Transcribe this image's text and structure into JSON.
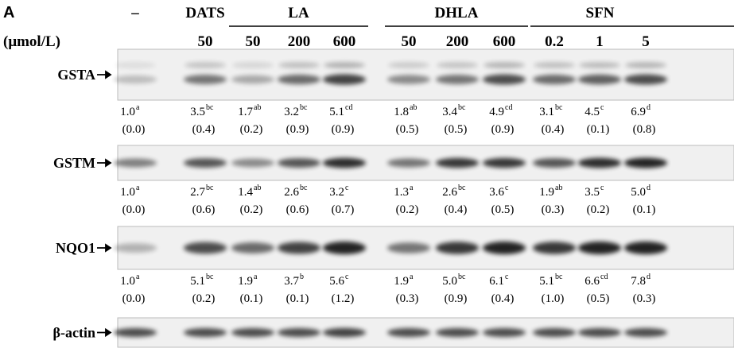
{
  "panel": "A",
  "unit": "(μmol/L)",
  "groups": [
    {
      "name": "–",
      "doses": []
    },
    {
      "name": "DATS",
      "doses": [
        "50"
      ]
    },
    {
      "name": "LA",
      "doses": [
        "50",
        "200",
        "600"
      ]
    },
    {
      "name": "DHLA",
      "doses": [
        "50",
        "200",
        "600"
      ]
    },
    {
      "name": "SFN",
      "doses": [
        "0.2",
        "1",
        "5"
      ]
    }
  ],
  "blots": [
    {
      "label": "GSTA",
      "values": [
        {
          "v": "1.0",
          "sup": "a",
          "sd": "(0.0)"
        },
        {
          "v": "3.5",
          "sup": "bc",
          "sd": "(0.4)"
        },
        {
          "v": "1.7",
          "sup": "ab",
          "sd": "(0.2)"
        },
        {
          "v": "3.2",
          "sup": "bc",
          "sd": "(0.9)"
        },
        {
          "v": "5.1",
          "sup": "cd",
          "sd": "(0.9)"
        },
        {
          "v": "1.8",
          "sup": "ab",
          "sd": "(0.5)"
        },
        {
          "v": "3.4",
          "sup": "bc",
          "sd": "(0.5)"
        },
        {
          "v": "4.9",
          "sup": "cd",
          "sd": "(0.9)"
        },
        {
          "v": "3.1",
          "sup": "bc",
          "sd": "(0.4)"
        },
        {
          "v": "4.5",
          "sup": "c",
          "sd": "(0.1)"
        },
        {
          "v": "6.9",
          "sup": "d",
          "sd": "(0.8)"
        }
      ]
    },
    {
      "label": "GSTM",
      "values": [
        {
          "v": "1.0",
          "sup": "a",
          "sd": "(0.0)"
        },
        {
          "v": "2.7",
          "sup": "bc",
          "sd": "(0.6)"
        },
        {
          "v": "1.4",
          "sup": "ab",
          "sd": "(0.2)"
        },
        {
          "v": "2.6",
          "sup": "bc",
          "sd": "(0.6)"
        },
        {
          "v": "3.2",
          "sup": "c",
          "sd": "(0.7)"
        },
        {
          "v": "1.3",
          "sup": "a",
          "sd": "(0.2)"
        },
        {
          "v": "2.6",
          "sup": "bc",
          "sd": "(0.4)"
        },
        {
          "v": "3.6",
          "sup": "c",
          "sd": "(0.5)"
        },
        {
          "v": "1.9",
          "sup": "ab",
          "sd": "(0.3)"
        },
        {
          "v": "3.5",
          "sup": "c",
          "sd": "(0.2)"
        },
        {
          "v": "5.0",
          "sup": "d",
          "sd": "(0.1)"
        }
      ]
    },
    {
      "label": "NQO1",
      "values": [
        {
          "v": "1.0",
          "sup": "a",
          "sd": "(0.0)"
        },
        {
          "v": "5.1",
          "sup": "bc",
          "sd": "(0.2)"
        },
        {
          "v": "1.9",
          "sup": "a",
          "sd": "(0.1)"
        },
        {
          "v": "3.7",
          "sup": "b",
          "sd": "(0.1)"
        },
        {
          "v": "5.6",
          "sup": "c",
          "sd": "(1.2)"
        },
        {
          "v": "1.9",
          "sup": "a",
          "sd": "(0.3)"
        },
        {
          "v": "5.0",
          "sup": "bc",
          "sd": "(0.9)"
        },
        {
          "v": "6.1",
          "sup": "c",
          "sd": "(0.4)"
        },
        {
          "v": "5.1",
          "sup": "bc",
          "sd": "(1.0)"
        },
        {
          "v": "6.6",
          "sup": "cd",
          "sd": "(0.5)"
        },
        {
          "v": "7.8",
          "sup": "d",
          "sd": "(0.3)"
        }
      ]
    },
    {
      "label": "β-actin",
      "values": []
    }
  ]
}
